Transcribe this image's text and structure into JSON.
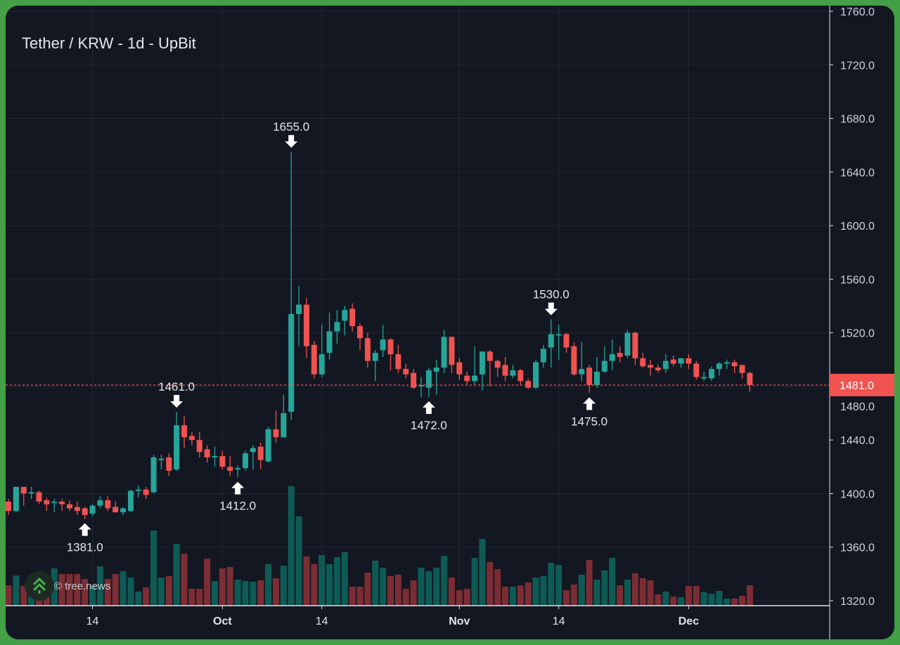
{
  "header": {
    "title": "Tether / KRW - 1d - UpBit"
  },
  "watermark": {
    "text": "© tree.news"
  },
  "colors": {
    "up": "#26a69a",
    "down": "#ef5350",
    "up_volume": "#0e5b55",
    "down_volume": "#7b2d33",
    "grid": "#232733",
    "background": "#131722",
    "frame": "#43a047",
    "last_price": "#f05350"
  },
  "chart_data": {
    "type": "candlestick",
    "title": "Tether / KRW - 1d - UpBit",
    "start_date": "Sep 3",
    "fields": [
      "open",
      "high",
      "low",
      "close",
      "volume"
    ],
    "candles": [
      [
        1394,
        1396,
        1384,
        1387,
        29
      ],
      [
        1387,
        1405,
        1386,
        1405,
        43
      ],
      [
        1405,
        1405,
        1391,
        1400,
        28
      ],
      [
        1400,
        1405,
        1396,
        1401,
        26
      ],
      [
        1401,
        1402,
        1392,
        1394,
        29
      ],
      [
        1395,
        1397,
        1387,
        1392,
        32
      ],
      [
        1393,
        1396,
        1386,
        1394,
        53
      ],
      [
        1394,
        1396,
        1387,
        1392,
        45
      ],
      [
        1392,
        1395,
        1387,
        1389,
        45
      ],
      [
        1390,
        1394,
        1384,
        1387,
        45
      ],
      [
        1389,
        1390,
        1381,
        1384,
        38
      ],
      [
        1385,
        1392,
        1383,
        1391,
        29
      ],
      [
        1391,
        1398,
        1389,
        1395,
        56
      ],
      [
        1395,
        1398,
        1387,
        1389,
        38
      ],
      [
        1390,
        1394,
        1386,
        1386,
        45
      ],
      [
        1386,
        1390,
        1384,
        1389,
        49
      ],
      [
        1387,
        1403,
        1386,
        1402,
        40
      ],
      [
        1402,
        1406,
        1397,
        1403,
        20
      ],
      [
        1403,
        1405,
        1396,
        1399,
        26
      ],
      [
        1401,
        1429,
        1400,
        1427,
        107
      ],
      [
        1425,
        1429,
        1418,
        1426,
        40
      ],
      [
        1427,
        1430,
        1413,
        1417,
        42
      ],
      [
        1418,
        1461,
        1417,
        1451,
        88
      ],
      [
        1451,
        1458,
        1434,
        1442,
        74
      ],
      [
        1443,
        1446,
        1436,
        1440,
        24
      ],
      [
        1440,
        1446,
        1427,
        1431,
        24
      ],
      [
        1433,
        1436,
        1423,
        1427,
        67
      ],
      [
        1427,
        1435,
        1420,
        1428,
        35
      ],
      [
        1428,
        1432,
        1418,
        1420,
        53
      ],
      [
        1420,
        1428,
        1413,
        1417,
        55
      ],
      [
        1418,
        1421,
        1412,
        1419,
        37
      ],
      [
        1419,
        1432,
        1417,
        1430,
        35
      ],
      [
        1431,
        1436,
        1418,
        1434,
        34
      ],
      [
        1435,
        1438,
        1418,
        1425,
        36
      ],
      [
        1424,
        1450,
        1423,
        1448,
        59
      ],
      [
        1448,
        1462,
        1438,
        1442,
        39
      ],
      [
        1442,
        1474,
        1442,
        1460,
        57
      ],
      [
        1461,
        1655,
        1455,
        1534,
        170
      ],
      [
        1534,
        1555,
        1510,
        1541,
        127
      ],
      [
        1541,
        1546,
        1501,
        1510,
        70
      ],
      [
        1511,
        1514,
        1486,
        1489,
        59
      ],
      [
        1489,
        1526,
        1487,
        1504,
        72
      ],
      [
        1505,
        1535,
        1500,
        1521,
        59
      ],
      [
        1521,
        1537,
        1512,
        1528,
        69
      ],
      [
        1529,
        1540,
        1518,
        1537,
        76
      ],
      [
        1538,
        1542,
        1521,
        1525,
        27
      ],
      [
        1525,
        1527,
        1507,
        1516,
        27
      ],
      [
        1516,
        1520,
        1494,
        1499,
        47
      ],
      [
        1499,
        1507,
        1484,
        1505,
        64
      ],
      [
        1507,
        1526,
        1502,
        1515,
        54
      ],
      [
        1515,
        1516,
        1492,
        1504,
        42
      ],
      [
        1504,
        1511,
        1490,
        1493,
        44
      ],
      [
        1493,
        1497,
        1486,
        1489,
        24
      ],
      [
        1490,
        1493,
        1478,
        1479,
        36
      ],
      [
        1480,
        1487,
        1472,
        1481,
        54
      ],
      [
        1479,
        1494,
        1472,
        1492,
        49
      ],
      [
        1491,
        1500,
        1474,
        1494,
        54
      ],
      [
        1494,
        1522,
        1490,
        1517,
        71
      ],
      [
        1517,
        1517,
        1490,
        1496,
        40
      ],
      [
        1498,
        1501,
        1485,
        1489,
        22
      ],
      [
        1488,
        1491,
        1481,
        1484,
        24
      ],
      [
        1484,
        1510,
        1481,
        1488,
        68
      ],
      [
        1489,
        1506,
        1477,
        1506,
        95
      ],
      [
        1506,
        1507,
        1480,
        1499,
        62
      ],
      [
        1499,
        1500,
        1487,
        1494,
        52
      ],
      [
        1496,
        1502,
        1484,
        1488,
        27
      ],
      [
        1488,
        1496,
        1486,
        1492,
        27
      ],
      [
        1492,
        1493,
        1481,
        1484,
        29
      ],
      [
        1484,
        1486,
        1478,
        1479,
        33
      ],
      [
        1479,
        1500,
        1478,
        1498,
        40
      ],
      [
        1498,
        1511,
        1494,
        1508,
        42
      ],
      [
        1509,
        1530,
        1494,
        1519,
        61
      ],
      [
        1518,
        1526,
        1500,
        1519,
        58
      ],
      [
        1519,
        1520,
        1505,
        1509,
        22
      ],
      [
        1510,
        1513,
        1488,
        1489,
        30
      ],
      [
        1489,
        1513,
        1484,
        1493,
        44
      ],
      [
        1494,
        1496,
        1475,
        1481,
        65
      ],
      [
        1481,
        1502,
        1479,
        1491,
        37
      ],
      [
        1491,
        1510,
        1490,
        1499,
        50
      ],
      [
        1499,
        1515,
        1492,
        1504,
        68
      ],
      [
        1505,
        1510,
        1498,
        1502,
        29
      ],
      [
        1503,
        1522,
        1501,
        1520,
        37
      ],
      [
        1520,
        1521,
        1496,
        1501,
        46
      ],
      [
        1501,
        1505,
        1494,
        1495,
        39
      ],
      [
        1496,
        1500,
        1488,
        1494,
        36
      ],
      [
        1494,
        1496,
        1490,
        1492,
        16
      ],
      [
        1493,
        1504,
        1490,
        1499,
        20
      ],
      [
        1500,
        1503,
        1495,
        1497,
        13
      ],
      [
        1497,
        1501,
        1494,
        1501,
        12
      ],
      [
        1501,
        1504,
        1493,
        1497,
        28
      ],
      [
        1497,
        1499,
        1485,
        1487,
        28
      ],
      [
        1486,
        1491,
        1484,
        1487,
        19
      ],
      [
        1486,
        1495,
        1484,
        1493,
        17
      ],
      [
        1493,
        1498,
        1488,
        1497,
        21
      ],
      [
        1497,
        1500,
        1493,
        1498,
        10
      ],
      [
        1498,
        1500,
        1490,
        1495,
        10
      ],
      [
        1496,
        1496,
        1486,
        1490,
        14
      ],
      [
        1490,
        1491,
        1476,
        1481,
        29
      ]
    ],
    "ylim": [
      1320,
      1760
    ],
    "y_ticks": [
      "1760.0",
      "1720.0",
      "1680.0",
      "1640.0",
      "1600.0",
      "1560.0",
      "1520.0",
      "1480.0",
      "1440.0",
      "1400.0",
      "1360.0",
      "1320.0"
    ],
    "y_tick_values": [
      1760,
      1720,
      1680,
      1640,
      1600,
      1560,
      1520,
      1480,
      1440,
      1400,
      1360,
      1320
    ],
    "x_ticks": [
      {
        "label": "14",
        "index": 11,
        "bold": false
      },
      {
        "label": "Oct",
        "index": 28,
        "bold": true
      },
      {
        "label": "14",
        "index": 41,
        "bold": false
      },
      {
        "label": "Nov",
        "index": 59,
        "bold": true
      },
      {
        "label": "14",
        "index": 72,
        "bold": false
      },
      {
        "label": "Dec",
        "index": 89,
        "bold": true
      }
    ],
    "annotations": [
      {
        "label": "1381.0",
        "index": 10,
        "price": 1381,
        "kind": "low"
      },
      {
        "label": "1461.0",
        "index": 22,
        "price": 1461,
        "kind": "high"
      },
      {
        "label": "1412.0",
        "index": 30,
        "price": 1412,
        "kind": "low"
      },
      {
        "label": "1655.0",
        "index": 37,
        "price": 1655,
        "kind": "high"
      },
      {
        "label": "1472.0",
        "index": 55,
        "price": 1472,
        "kind": "low"
      },
      {
        "label": "1530.0",
        "index": 71,
        "price": 1530,
        "kind": "high"
      },
      {
        "label": "1475.0",
        "index": 76,
        "price": 1475,
        "kind": "low"
      }
    ],
    "last_price": {
      "value": 1481,
      "label": "1481.0"
    },
    "grid": true
  }
}
